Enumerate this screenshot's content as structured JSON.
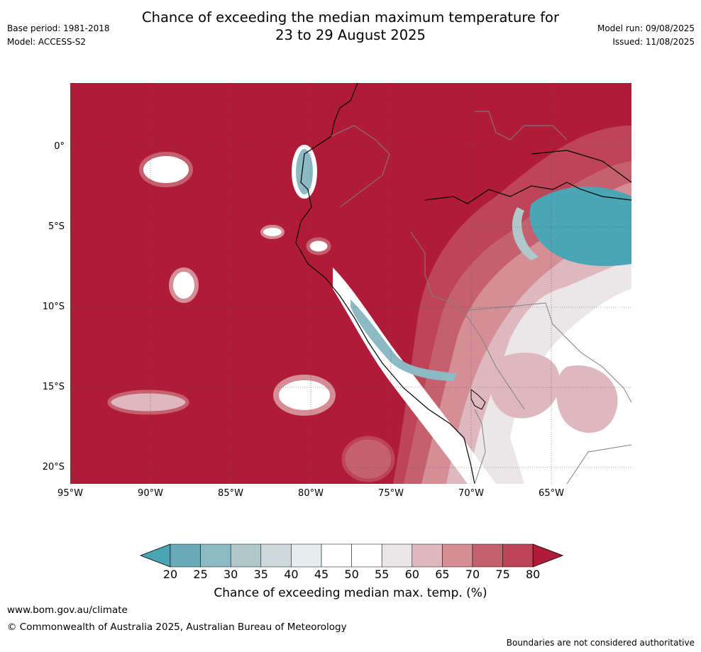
{
  "header": {
    "title_line1": "Chance of exceeding the median maximum temperature for",
    "title_line2": "23 to 29 August 2025",
    "base_period": "Base period: 1981-2018",
    "model": "Model: ACCESS-S2",
    "model_run": "Model run: 09/08/2025",
    "issued": "Issued: 11/08/2025"
  },
  "map": {
    "extent": {
      "lon_min": -95,
      "lon_max": -60,
      "lat_min": -21,
      "lat_max": 4
    },
    "lat_ticks": [
      {
        "value": 0,
        "label": "0°"
      },
      {
        "value": -5,
        "label": "5°S"
      },
      {
        "value": -10,
        "label": "10°S"
      },
      {
        "value": -15,
        "label": "15°S"
      },
      {
        "value": -20,
        "label": "20°S"
      }
    ],
    "lon_ticks": [
      {
        "value": -95,
        "label": "95°W"
      },
      {
        "value": -90,
        "label": "90°W"
      },
      {
        "value": -85,
        "label": "85°W"
      },
      {
        "value": -80,
        "label": "80°W"
      },
      {
        "value": -75,
        "label": "75°W"
      },
      {
        "value": -70,
        "label": "70°W"
      },
      {
        "value": -65,
        "label": "65°W"
      }
    ],
    "background_color": "#b01c37"
  },
  "colorbar": {
    "ticks": [
      "20",
      "25",
      "30",
      "35",
      "40",
      "45",
      "50",
      "55",
      "60",
      "65",
      "70",
      "75",
      "80"
    ],
    "colors": [
      "#4aa5b4",
      "#6aaab9",
      "#8cbac4",
      "#aec8cc",
      "#cdd9db",
      "#e8eef0",
      "#ffffff",
      "#ffffff",
      "#ebe7e8",
      "#deb8be",
      "#d58d96",
      "#c5616e",
      "#bd4557",
      "#b01c37"
    ],
    "label": "Chance of exceeding median max. temp. (%)"
  },
  "footer": {
    "url": "www.bom.gov.au/climate",
    "copyright": "© Commonwealth of Australia 2025, Australian Bureau of Meteorology",
    "note": "Boundaries are not considered authoritative"
  }
}
